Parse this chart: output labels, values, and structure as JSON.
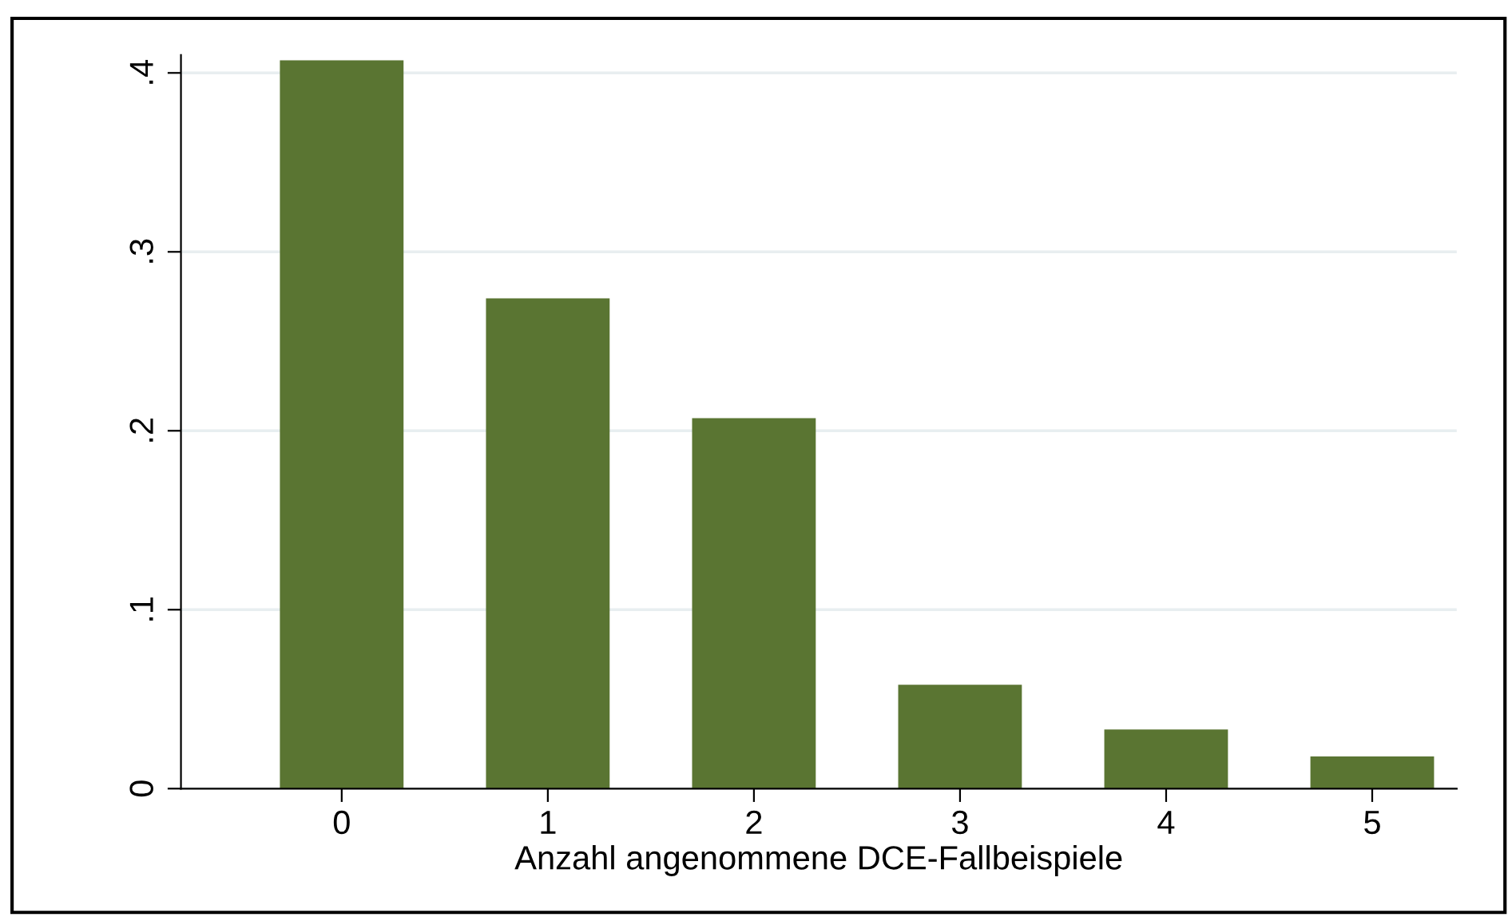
{
  "chart_data": {
    "type": "bar",
    "xlabel": "Anzahl angenommene DCE-Fallbeispiele",
    "x": [
      0,
      1,
      2,
      3,
      4,
      5
    ],
    "values": [
      0.407,
      0.274,
      0.207,
      0.058,
      0.033,
      0.018
    ],
    "color": "#5a7532",
    "xlim": [
      -0.78,
      5.41
    ],
    "xticks": [
      0,
      1,
      2,
      3,
      4,
      5
    ],
    "ylim": [
      0,
      0.41
    ],
    "yticks": [
      0,
      {
        "value": 0.1,
        "label": ".1"
      },
      {
        "value": 0.2,
        "label": ".2"
      },
      {
        "value": 0.3,
        "label": ".3"
      },
      {
        "value": 0.4,
        "label": ".4"
      }
    ],
    "grid": "y"
  }
}
